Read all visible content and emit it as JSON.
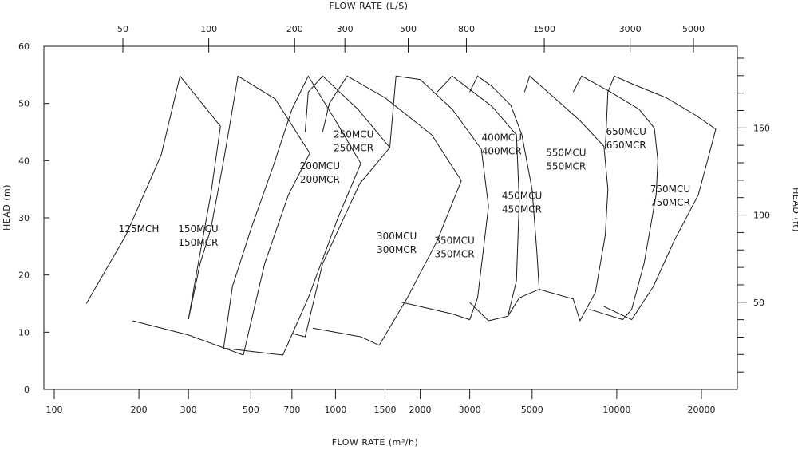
{
  "chart_data": {
    "type": "line",
    "title": "",
    "axes": {
      "bottom": {
        "label": "FLOW RATE (m³/h)",
        "scale": "log",
        "ticks": [
          "100",
          "200",
          "300",
          "500",
          "700",
          "1000",
          "1500",
          "2000",
          "3000",
          "5000",
          "10000",
          "20000"
        ],
        "tick_values": [
          100,
          200,
          300,
          500,
          700,
          1000,
          1500,
          2000,
          3000,
          5000,
          10000,
          20000
        ]
      },
      "top": {
        "label": "FLOW RATE (L/S)",
        "scale": "log",
        "ticks": [
          "50",
          "100",
          "200",
          "300",
          "500",
          "800",
          "1500",
          "3000",
          "5000"
        ],
        "tick_values": [
          50,
          100,
          200,
          300,
          500,
          800,
          1500,
          3000,
          5000
        ]
      },
      "left": {
        "label": "HEAD (m)",
        "range": [
          0,
          60
        ],
        "ticks": [
          "0",
          "10",
          "20",
          "30",
          "40",
          "50",
          "60"
        ],
        "tick_values": [
          0,
          10,
          20,
          30,
          40,
          50,
          60
        ]
      },
      "right": {
        "label": "HEAD (ft)",
        "range": [
          0,
          196.85
        ],
        "ticks": [
          "50",
          "100",
          "150"
        ],
        "tick_values": [
          50,
          100,
          150
        ]
      }
    },
    "grid": false,
    "series": [
      {
        "name": "125MCH",
        "labels": [
          "125MCH"
        ],
        "label_at": [
          200,
          27.5
        ],
        "points": [
          [
            130,
            15
          ],
          [
            180,
            27
          ],
          [
            240,
            41
          ],
          [
            280,
            54.8
          ],
          [
            390,
            46
          ],
          [
            360,
            34
          ],
          [
            325,
            22
          ],
          [
            300,
            12.3
          ]
        ]
      },
      {
        "name": "150MCU / 150MCR",
        "labels": [
          "150MCU",
          "150MCR"
        ],
        "label_at": [
          325,
          27.5
        ],
        "points": [
          [
            190,
            12
          ],
          [
            300,
            9.5
          ],
          [
            470,
            6
          ],
          [
            560,
            22
          ],
          [
            680,
            34
          ],
          [
            810,
            41.3
          ],
          [
            610,
            50.8
          ],
          [
            450,
            54.8
          ],
          [
            420,
            46
          ],
          [
            400,
            40
          ],
          [
            380,
            34
          ],
          [
            360,
            28
          ],
          [
            330,
            22
          ],
          [
            300,
            12.3
          ]
        ]
      },
      {
        "name": "200MCU / 200MCR",
        "labels": [
          "200MCU",
          "200MCR"
        ],
        "label_at": [
          880,
          38.5
        ],
        "points": [
          [
            400,
            7.2
          ],
          [
            650,
            6
          ],
          [
            800,
            16
          ],
          [
            1020,
            30
          ],
          [
            1230,
            39.5
          ],
          [
            1000,
            47
          ],
          [
            800,
            54.8
          ],
          [
            700,
            49
          ],
          [
            600,
            39
          ],
          [
            500,
            28
          ],
          [
            430,
            18
          ],
          [
            400,
            7.2
          ]
        ]
      },
      {
        "name": "250MCU / 250MCR",
        "labels": [
          "250MCU",
          "250MCR"
        ],
        "label_at": [
          1160,
          44
        ],
        "points": [
          [
            700,
            9.8
          ],
          [
            780,
            9.2
          ],
          [
            900,
            22
          ],
          [
            1220,
            36
          ],
          [
            1560,
            42.3
          ],
          [
            1200,
            49
          ],
          [
            900,
            54.8
          ],
          [
            800,
            52
          ],
          [
            780,
            45
          ]
        ]
      },
      {
        "name": "300MCU / 300MCR",
        "labels": [
          "300MCU",
          "300MCR"
        ],
        "label_at": [
          1650,
          26.2
        ],
        "points": [
          [
            830,
            10.7
          ],
          [
            1230,
            9.2
          ],
          [
            1430,
            7.7
          ],
          [
            1800,
            16
          ],
          [
            2300,
            26
          ],
          [
            2800,
            36.5
          ],
          [
            2200,
            44.5
          ],
          [
            1500,
            51
          ],
          [
            1100,
            54.8
          ],
          [
            950,
            50
          ],
          [
            900,
            45
          ]
        ]
      },
      {
        "name": "350MCU / 350MCR",
        "labels": [
          "350MCU",
          "350MCR"
        ],
        "label_at": [
          2650,
          25.5
        ],
        "points": [
          [
            1700,
            15.3
          ],
          [
            2000,
            14.5
          ],
          [
            2600,
            13.2
          ],
          [
            3000,
            12.2
          ],
          [
            3200,
            16
          ],
          [
            3500,
            32
          ],
          [
            3300,
            42
          ],
          [
            2600,
            49
          ],
          [
            2000,
            54.2
          ],
          [
            1640,
            54.8
          ],
          [
            1560,
            42.3
          ]
        ]
      },
      {
        "name": "400MCU / 400MCR",
        "labels": [
          "400MCU",
          "400MCR"
        ],
        "label_at": [
          3900,
          43.5
        ],
        "points": [
          [
            3000,
            15.2
          ],
          [
            3500,
            12
          ],
          [
            4100,
            12.8
          ],
          [
            4400,
            19
          ],
          [
            4500,
            33
          ],
          [
            4400,
            44.5
          ],
          [
            3600,
            49.5
          ],
          [
            2600,
            54.8
          ],
          [
            2300,
            52
          ]
        ]
      },
      {
        "name": "450MCU / 450MCR",
        "labels": [
          "450MCU",
          "450MCR"
        ],
        "label_at": [
          4600,
          33.3
        ],
        "points": [
          [
            4100,
            12.8
          ],
          [
            4500,
            16
          ],
          [
            5300,
            17.5
          ],
          [
            5200,
            24
          ],
          [
            5000,
            35
          ],
          [
            4600,
            44.5
          ],
          [
            4200,
            49.7
          ],
          [
            3600,
            53
          ],
          [
            3200,
            54.8
          ],
          [
            3000,
            52
          ]
        ]
      },
      {
        "name": "550MCU / 550MCR",
        "labels": [
          "550MCU",
          "550MCR"
        ],
        "label_at": [
          6600,
          40.8
        ],
        "points": [
          [
            5300,
            17.5
          ],
          [
            7000,
            15.8
          ],
          [
            7400,
            12
          ],
          [
            8400,
            17
          ],
          [
            9100,
            27
          ],
          [
            9300,
            35
          ],
          [
            9000,
            42.5
          ],
          [
            7400,
            47
          ],
          [
            6000,
            51
          ],
          [
            4900,
            54.8
          ],
          [
            4700,
            52
          ]
        ]
      },
      {
        "name": "650MCU / 650MCR",
        "labels": [
          "650MCU",
          "650MCR"
        ],
        "label_at": [
          10800,
          44.5
        ],
        "points": [
          [
            8000,
            14
          ],
          [
            10500,
            12.2
          ],
          [
            11300,
            14
          ],
          [
            12500,
            22
          ],
          [
            13800,
            34
          ],
          [
            14000,
            40
          ],
          [
            13600,
            45.7
          ],
          [
            12000,
            49
          ],
          [
            9500,
            52
          ],
          [
            7500,
            54.8
          ],
          [
            7000,
            52
          ]
        ]
      },
      {
        "name": "750MCU / 750MCR",
        "labels": [
          "750MCU",
          "750MCR"
        ],
        "label_at": [
          15500,
          34.5
        ],
        "points": [
          [
            9000,
            14.5
          ],
          [
            11300,
            12.2
          ],
          [
            13500,
            18
          ],
          [
            16000,
            26
          ],
          [
            19500,
            34
          ],
          [
            22500,
            45.5
          ],
          [
            19000,
            48
          ],
          [
            15000,
            51
          ],
          [
            11500,
            53.3
          ],
          [
            9800,
            54.8
          ],
          [
            9300,
            52
          ],
          [
            9100,
            42
          ]
        ]
      }
    ]
  }
}
